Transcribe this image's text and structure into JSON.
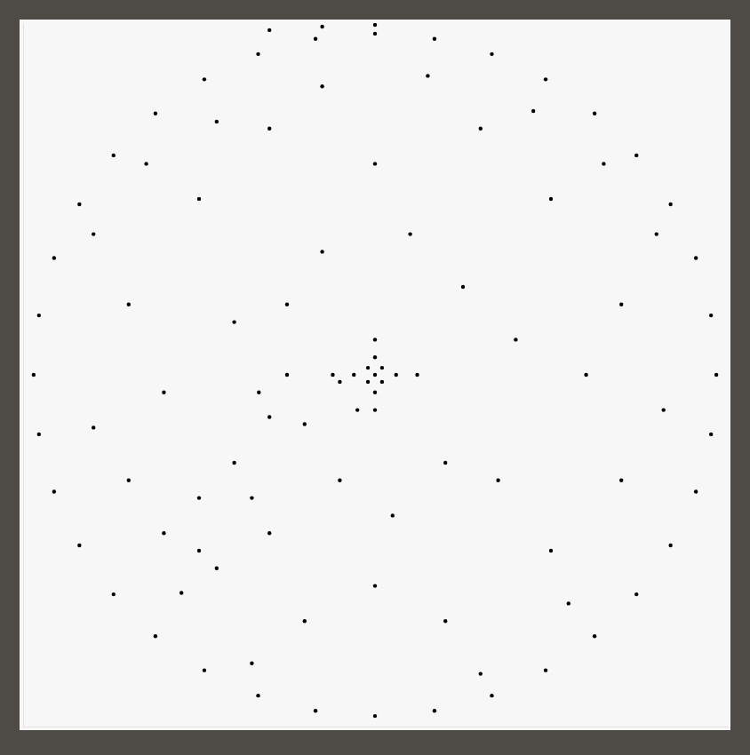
{
  "chart_data": {
    "type": "scatter",
    "x": [
      0.97,
      0.955,
      0.912,
      0.84,
      0.743,
      0.624,
      0.485,
      0.332,
      0.169,
      0.0,
      -0.169,
      -0.332,
      -0.485,
      -0.624,
      -0.743,
      -0.84,
      -0.912,
      -0.955,
      -0.97,
      -0.955,
      -0.912,
      -0.84,
      -0.743,
      -0.624,
      -0.485,
      -0.332,
      -0.169,
      0.0,
      0.169,
      0.332,
      0.485,
      0.624,
      0.743,
      0.84,
      0.912,
      0.955,
      0.0,
      0.0,
      0.0,
      0.0,
      0.0,
      0.06,
      0.12,
      -0.06,
      -0.12,
      0.02,
      -0.02,
      0.02,
      -0.02,
      -0.1,
      -0.25,
      -0.33,
      -0.3,
      -0.2,
      -0.05,
      0.5,
      -0.5,
      0.5,
      -0.5,
      0.3,
      -0.3,
      0.7,
      -0.7,
      0.7,
      -0.7,
      0.2,
      -0.2,
      0.1,
      -0.15,
      0.4,
      -0.4,
      0.35,
      -0.35,
      0.05,
      0.6,
      -0.6,
      0.0,
      0.0,
      0.45,
      -0.45,
      0.8,
      -0.8,
      0.82,
      -0.8,
      0.55,
      -0.55,
      0.25,
      -0.25,
      0.2,
      -0.1,
      0.65,
      -0.65,
      0.15,
      -0.15,
      0.3,
      -0.35,
      -0.5,
      -0.6,
      -0.45,
      -0.3,
      -0.4,
      -0.3,
      -0.15,
      0.0
    ],
    "values": [
      0.0,
      0.169,
      0.332,
      0.485,
      0.624,
      0.743,
      0.84,
      0.912,
      0.955,
      0.97,
      0.955,
      0.912,
      0.84,
      0.743,
      0.624,
      0.485,
      0.332,
      0.169,
      0.0,
      -0.169,
      -0.332,
      -0.485,
      -0.624,
      -0.743,
      -0.84,
      -0.912,
      -0.955,
      -0.97,
      -0.955,
      -0.912,
      -0.84,
      -0.743,
      -0.624,
      -0.485,
      -0.332,
      -0.169,
      0.0,
      0.05,
      0.1,
      -0.05,
      -0.1,
      0.0,
      0.0,
      0.0,
      0.0,
      0.02,
      -0.02,
      -0.02,
      0.02,
      -0.02,
      0.0,
      -0.05,
      -0.12,
      -0.14,
      -0.1,
      0.5,
      0.5,
      -0.5,
      -0.5,
      0.7,
      0.7,
      0.2,
      0.2,
      -0.3,
      -0.3,
      -0.7,
      -0.7,
      0.4,
      0.35,
      0.1,
      0.15,
      -0.3,
      -0.35,
      -0.4,
      0.0,
      -0.05,
      0.6,
      -0.6,
      0.75,
      0.72,
      0.4,
      0.4,
      -0.1,
      -0.15,
      -0.65,
      -0.62,
      0.25,
      0.2,
      -0.25,
      -0.3,
      0.6,
      0.6,
      0.85,
      0.82,
      -0.85,
      -0.82,
      -0.35,
      -0.45,
      -0.55,
      -0.45,
      -0.25,
      0.98,
      0.99,
      0.995
    ],
    "xlim": [
      -1,
      1
    ],
    "ylim": [
      -1,
      1
    ],
    "color": "#000000",
    "marker": "circle",
    "grid": false,
    "tick_labels": false
  }
}
